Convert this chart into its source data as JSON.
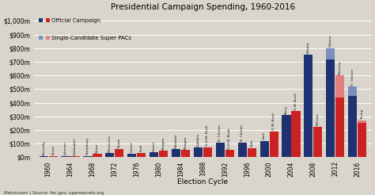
{
  "title": "Presidential Campaign Spending, 1960-2016",
  "xlabel": "Election Cycle",
  "source": "Metrocosm | Source: fec.gov, opensecrets.org",
  "years": [
    1960,
    1964,
    1968,
    1972,
    1976,
    1980,
    1984,
    1988,
    1992,
    1996,
    2000,
    2004,
    2008,
    2012,
    2016
  ],
  "dem_official": [
    9,
    8,
    11,
    30,
    28,
    38,
    58,
    70,
    110,
    110,
    120,
    310,
    750,
    720,
    450
  ],
  "rep_official": [
    11,
    9,
    24,
    62,
    33,
    48,
    53,
    73,
    53,
    68,
    190,
    340,
    225,
    440,
    250
  ],
  "dem_superpac": [
    0,
    0,
    0,
    0,
    0,
    0,
    0,
    0,
    0,
    0,
    0,
    0,
    0,
    80,
    70
  ],
  "rep_superpac": [
    0,
    0,
    0,
    0,
    0,
    0,
    0,
    0,
    0,
    0,
    0,
    0,
    0,
    160,
    20
  ],
  "dem_labels": [
    "Kennedy",
    "Johnson",
    "Humphrey",
    "McGovern",
    "Carter",
    "Carter",
    "Mondale",
    "Dukakis",
    "B. Clinton",
    "B. Clinton",
    "Gore",
    "Kerry",
    "Obama",
    "Obama",
    "H. Clinton"
  ],
  "rep_labels": [
    "Nixon",
    "Goldwater",
    "Nixon",
    "Nixon",
    "Ford",
    "Reagan",
    "Reagan",
    "G.H.W. Bush",
    "G.H.W. Bush",
    "Dole",
    "G.W. Bush",
    "G.W. Bush",
    "McCain",
    "Romney",
    "Trump"
  ],
  "dem_color": "#1e3170",
  "rep_color": "#cc2222",
  "dem_superpac_color": "#7b8fbf",
  "rep_superpac_color": "#e08080",
  "bg_color": "#d9d5cc",
  "grid_color": "#ffffff",
  "ytick_labels": [
    "$0m",
    "$100m",
    "$200m",
    "$300m",
    "$400m",
    "$500m",
    "$600m",
    "$700m",
    "$800m",
    "$900m",
    "$1,000m"
  ],
  "ytick_values": [
    0,
    100,
    200,
    300,
    400,
    500,
    600,
    700,
    800,
    900,
    1000
  ],
  "ylim": [
    0,
    1050
  ]
}
